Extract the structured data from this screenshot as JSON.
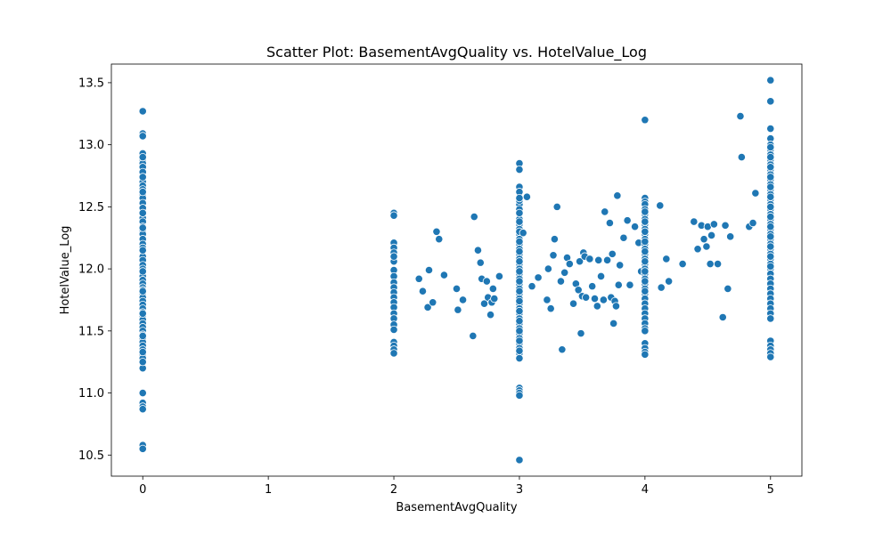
{
  "chart_data": {
    "type": "scatter",
    "title": "Scatter Plot: BasementAvgQuality vs. HotelValue_Log",
    "xlabel": "BasementAvgQuality",
    "ylabel": "HotelValue_Log",
    "xlim": [
      -0.25,
      5.25
    ],
    "ylim": [
      10.33,
      13.65
    ],
    "x_ticks": [
      0,
      1,
      2,
      3,
      4,
      5
    ],
    "x_tick_labels": [
      "0",
      "1",
      "2",
      "3",
      "4",
      "5"
    ],
    "y_ticks": [
      10.5,
      11.0,
      11.5,
      12.0,
      12.5,
      13.0,
      13.5
    ],
    "y_tick_labels": [
      "10.5",
      "11.0",
      "11.5",
      "12.0",
      "12.5",
      "13.0",
      "13.5"
    ],
    "grid": false,
    "legend": "none",
    "color": "#1f77b4",
    "x": [
      0,
      0,
      0,
      0,
      0,
      0,
      0,
      0,
      0,
      0,
      0,
      0,
      0,
      0,
      0,
      0,
      0,
      0,
      0,
      0,
      0,
      0,
      0,
      0,
      0,
      0,
      0,
      0,
      0,
      0,
      0,
      0,
      0,
      0,
      0,
      0,
      0,
      0,
      0,
      0,
      0,
      0,
      0,
      0,
      0,
      0,
      0,
      0,
      0,
      0,
      0,
      0,
      0,
      0,
      0,
      0,
      0,
      0,
      0,
      0,
      0,
      0,
      0,
      0,
      0,
      0,
      0,
      0,
      0,
      0,
      0,
      0,
      0,
      0,
      2,
      2,
      2,
      2,
      2,
      2,
      2,
      2,
      2,
      2,
      2,
      2,
      2,
      2,
      2,
      2,
      2,
      2,
      2,
      2,
      2,
      2,
      2,
      2.2,
      2.23,
      2.27,
      2.28,
      2.31,
      2.34,
      2.36,
      2.4,
      2.5,
      2.51,
      2.55,
      2.63,
      2.64,
      2.67,
      2.69,
      2.7,
      2.72,
      2.74,
      2.75,
      2.77,
      2.78,
      2.79,
      2.8,
      2.84,
      3,
      3,
      3,
      3,
      3,
      3,
      3,
      3,
      3,
      3,
      3,
      3,
      3,
      3,
      3,
      3,
      3,
      3,
      3,
      3,
      3,
      3,
      3,
      3,
      3,
      3,
      3,
      3,
      3,
      3,
      3,
      3,
      3,
      3,
      3,
      3,
      3,
      3,
      3,
      3,
      3,
      3,
      3,
      3,
      3,
      3,
      3,
      3,
      3,
      3,
      3,
      3,
      3,
      3,
      3,
      3,
      3,
      3,
      3.03,
      3.06,
      3.1,
      3.15,
      3.22,
      3.23,
      3.25,
      3.27,
      3.28,
      3.3,
      3.33,
      3.34,
      3.36,
      3.38,
      3.4,
      3.43,
      3.45,
      3.47,
      3.48,
      3.49,
      3.5,
      3.51,
      3.52,
      3.53,
      3.56,
      3.58,
      3.6,
      3.62,
      3.63,
      3.65,
      3.67,
      3.68,
      3.7,
      3.72,
      3.73,
      3.74,
      3.75,
      3.76,
      3.77,
      3.78,
      3.79,
      3.8,
      3.83,
      3.86,
      3.88,
      3.92,
      3.95,
      3.97,
      4,
      4,
      4,
      4,
      4,
      4,
      4,
      4,
      4,
      4,
      4,
      4,
      4,
      4,
      4,
      4,
      4,
      4,
      4,
      4,
      4,
      4,
      4,
      4,
      4,
      4,
      4,
      4,
      4,
      4,
      4,
      4,
      4,
      4,
      4,
      4,
      4,
      4,
      4,
      4,
      4,
      4,
      4,
      4.12,
      4.13,
      4.17,
      4.19,
      4.3,
      4.39,
      4.42,
      4.45,
      4.47,
      4.49,
      4.5,
      4.52,
      4.53,
      4.55,
      4.58,
      4.62,
      4.64,
      4.66,
      4.68,
      4.76,
      4.77,
      4.83,
      4.86,
      4.88,
      5,
      5,
      5,
      5,
      5,
      5,
      5,
      5,
      5,
      5,
      5,
      5,
      5,
      5,
      5,
      5,
      5,
      5,
      5,
      5,
      5,
      5,
      5,
      5,
      5,
      5,
      5,
      5,
      5,
      5,
      5,
      5,
      5,
      5,
      5,
      5,
      5,
      5,
      5,
      5,
      5,
      5,
      5,
      5,
      5,
      5,
      5,
      5,
      5,
      5,
      5,
      5,
      5,
      5,
      5,
      5,
      5,
      5
    ],
    "y": [
      13.27,
      13.09,
      13.07,
      12.93,
      12.88,
      12.85,
      12.82,
      12.78,
      12.73,
      12.7,
      12.67,
      12.64,
      12.6,
      12.57,
      12.53,
      12.49,
      12.45,
      12.41,
      12.38,
      12.34,
      12.31,
      12.28,
      12.24,
      12.2,
      12.17,
      12.14,
      12.1,
      12.07,
      12.03,
      12.0,
      11.97,
      11.94,
      11.91,
      11.88,
      11.85,
      11.83,
      11.8,
      11.77,
      11.74,
      11.71,
      11.68,
      11.65,
      11.62,
      11.59,
      11.56,
      11.53,
      11.5,
      11.47,
      11.44,
      11.41,
      11.38,
      11.35,
      11.31,
      11.28,
      11.24,
      11.2,
      11.0,
      10.92,
      10.89,
      10.87,
      10.58,
      10.55,
      12.9,
      12.74,
      12.62,
      12.45,
      12.33,
      12.15,
      11.98,
      11.82,
      11.64,
      11.46,
      11.33,
      11.25,
      12.45,
      12.43,
      12.21,
      12.17,
      12.13,
      12.06,
      11.99,
      11.94,
      11.89,
      11.85,
      11.81,
      11.77,
      11.73,
      11.69,
      11.64,
      11.6,
      11.55,
      11.51,
      11.41,
      11.38,
      11.35,
      11.32,
      12.1,
      11.92,
      11.82,
      11.69,
      11.99,
      11.73,
      12.3,
      12.24,
      11.95,
      11.84,
      11.67,
      11.75,
      11.46,
      12.42,
      12.15,
      12.05,
      11.92,
      11.72,
      11.9,
      11.77,
      11.63,
      11.73,
      11.84,
      11.76,
      11.94,
      12.85,
      12.8,
      12.66,
      12.52,
      12.48,
      12.44,
      12.4,
      12.36,
      12.32,
      12.28,
      12.24,
      12.2,
      12.16,
      12.12,
      12.08,
      12.04,
      12.0,
      11.96,
      11.92,
      11.88,
      11.84,
      11.8,
      11.76,
      11.72,
      11.68,
      11.64,
      11.6,
      11.56,
      11.52,
      11.48,
      11.44,
      11.4,
      11.36,
      11.32,
      11.28,
      11.04,
      11.02,
      11.0,
      10.98,
      10.46,
      12.55,
      12.45,
      12.38,
      12.3,
      12.22,
      12.14,
      12.06,
      11.98,
      11.9,
      11.82,
      11.74,
      11.66,
      11.58,
      11.5,
      11.42,
      11.34,
      12.62,
      12.57,
      12.29,
      12.58,
      11.86,
      11.93,
      11.75,
      12.0,
      11.68,
      12.11,
      12.24,
      12.5,
      11.9,
      11.35,
      11.97,
      12.09,
      12.04,
      11.72,
      11.88,
      11.83,
      12.06,
      11.48,
      11.78,
      12.13,
      12.1,
      11.77,
      12.08,
      11.86,
      11.76,
      11.7,
      12.07,
      11.94,
      11.75,
      12.46,
      12.07,
      12.37,
      11.77,
      12.12,
      11.56,
      11.74,
      11.7,
      12.59,
      11.87,
      12.03,
      12.25,
      12.39,
      11.87,
      12.34,
      12.21,
      11.98,
      12.57,
      12.54,
      12.52,
      12.48,
      12.44,
      12.4,
      12.36,
      12.32,
      12.28,
      12.24,
      12.2,
      12.16,
      12.12,
      12.08,
      12.04,
      12.0,
      11.96,
      11.92,
      11.88,
      11.84,
      11.8,
      11.76,
      11.72,
      11.68,
      11.64,
      11.6,
      11.56,
      11.52,
      11.5,
      11.4,
      11.36,
      11.33,
      11.31,
      13.2,
      12.46,
      12.38,
      12.3,
      12.22,
      12.14,
      12.06,
      11.98,
      11.9,
      11.82,
      12.51,
      11.85,
      12.08,
      11.9,
      12.04,
      12.38,
      12.16,
      12.35,
      12.24,
      12.18,
      12.34,
      12.04,
      12.27,
      12.36,
      12.04,
      11.61,
      12.35,
      11.84,
      12.26,
      13.23,
      12.9,
      12.34,
      12.37,
      12.61,
      13.52,
      13.35,
      13.13,
      13.05,
      13.0,
      12.96,
      12.92,
      12.88,
      12.84,
      12.8,
      12.76,
      12.72,
      12.68,
      12.64,
      12.6,
      12.56,
      12.52,
      12.48,
      12.44,
      12.4,
      12.36,
      12.32,
      12.28,
      12.24,
      12.2,
      12.16,
      12.12,
      12.08,
      12.04,
      12.0,
      11.96,
      11.92,
      11.88,
      11.84,
      11.8,
      11.76,
      11.72,
      11.68,
      11.64,
      11.6,
      11.42,
      11.38,
      11.35,
      11.32,
      11.29,
      12.98,
      12.9,
      12.82,
      12.74,
      12.66,
      12.58,
      12.5,
      12.42,
      12.34,
      12.26,
      12.18,
      12.1,
      12.02
    ]
  }
}
